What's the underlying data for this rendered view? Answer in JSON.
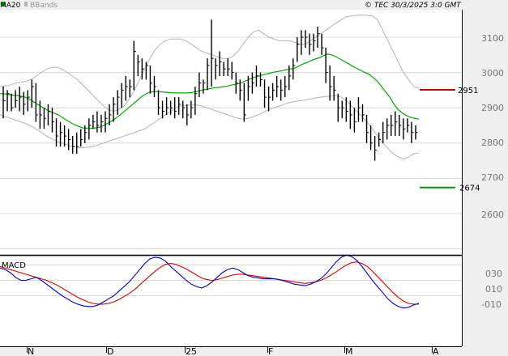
{
  "header": {
    "ma_label": "MA20",
    "bb_label": "BBands",
    "copyright": "© TEC 30/3/2025 3:0 GMT"
  },
  "macd_panel": {
    "label": "MACD",
    "y_ticks": [
      "030",
      "010",
      "-010"
    ]
  },
  "price_axis": {
    "ticks": [
      "3100",
      "3000",
      "2900",
      "2800",
      "2700",
      "2600"
    ]
  },
  "x_axis": {
    "labels": [
      "N",
      "D",
      "25",
      "F",
      "M",
      "A"
    ]
  },
  "levels": {
    "resistance_label": "2951",
    "support_label": "2674"
  },
  "colors": {
    "price_bars": "#000000",
    "ma20": "#00aa00",
    "bbands": "#b4b4b4",
    "resistance": "#cc0000",
    "support": "#009900",
    "macd_line": "#0000cc",
    "signal_line": "#dd0000",
    "grid": "#d8d8d8",
    "panel_background": "#ffffff",
    "page_background": "#efefef"
  },
  "chart_data": {
    "type": "ohlc-bars",
    "title": "",
    "price_ylim": [
      2500,
      3160
    ],
    "resistance": 2951,
    "support": 2674,
    "price_bars": [
      {
        "h": 2960,
        "l": 2870,
        "c": 2920
      },
      {
        "h": 2950,
        "l": 2890,
        "c": 2940
      },
      {
        "h": 2940,
        "l": 2890,
        "c": 2900
      },
      {
        "h": 2950,
        "l": 2900,
        "c": 2920
      },
      {
        "h": 2960,
        "l": 2890,
        "c": 2930
      },
      {
        "h": 2945,
        "l": 2880,
        "c": 2910
      },
      {
        "h": 2950,
        "l": 2890,
        "c": 2930
      },
      {
        "h": 2980,
        "l": 2900,
        "c": 2960
      },
      {
        "h": 2970,
        "l": 2860,
        "c": 2880
      },
      {
        "h": 2920,
        "l": 2840,
        "c": 2880
      },
      {
        "h": 2900,
        "l": 2840,
        "c": 2870
      },
      {
        "h": 2910,
        "l": 2850,
        "c": 2890
      },
      {
        "h": 2900,
        "l": 2830,
        "c": 2860
      },
      {
        "h": 2870,
        "l": 2790,
        "c": 2820
      },
      {
        "h": 2860,
        "l": 2790,
        "c": 2830
      },
      {
        "h": 2850,
        "l": 2790,
        "c": 2820
      },
      {
        "h": 2840,
        "l": 2780,
        "c": 2810
      },
      {
        "h": 2820,
        "l": 2770,
        "c": 2790
      },
      {
        "h": 2830,
        "l": 2770,
        "c": 2790
      },
      {
        "h": 2840,
        "l": 2790,
        "c": 2810
      },
      {
        "h": 2850,
        "l": 2800,
        "c": 2830
      },
      {
        "h": 2870,
        "l": 2810,
        "c": 2850
      },
      {
        "h": 2880,
        "l": 2840,
        "c": 2860
      },
      {
        "h": 2890,
        "l": 2830,
        "c": 2850
      },
      {
        "h": 2880,
        "l": 2830,
        "c": 2860
      },
      {
        "h": 2890,
        "l": 2830,
        "c": 2870
      },
      {
        "h": 2910,
        "l": 2850,
        "c": 2880
      },
      {
        "h": 2930,
        "l": 2860,
        "c": 2910
      },
      {
        "h": 2950,
        "l": 2880,
        "c": 2930
      },
      {
        "h": 2970,
        "l": 2900,
        "c": 2950
      },
      {
        "h": 2990,
        "l": 2920,
        "c": 2960
      },
      {
        "h": 2980,
        "l": 2930,
        "c": 2960
      },
      {
        "h": 3090,
        "l": 2950,
        "c": 3060
      },
      {
        "h": 3050,
        "l": 2990,
        "c": 3030
      },
      {
        "h": 3040,
        "l": 2980,
        "c": 3010
      },
      {
        "h": 3030,
        "l": 2980,
        "c": 3020
      },
      {
        "h": 3020,
        "l": 2940,
        "c": 2970
      },
      {
        "h": 2990,
        "l": 2930,
        "c": 2960
      },
      {
        "h": 2950,
        "l": 2880,
        "c": 2900
      },
      {
        "h": 2920,
        "l": 2870,
        "c": 2890
      },
      {
        "h": 2930,
        "l": 2880,
        "c": 2900
      },
      {
        "h": 2920,
        "l": 2880,
        "c": 2900
      },
      {
        "h": 2930,
        "l": 2870,
        "c": 2890
      },
      {
        "h": 2930,
        "l": 2880,
        "c": 2910
      },
      {
        "h": 2920,
        "l": 2870,
        "c": 2900
      },
      {
        "h": 2910,
        "l": 2850,
        "c": 2880
      },
      {
        "h": 2920,
        "l": 2870,
        "c": 2900
      },
      {
        "h": 2960,
        "l": 2880,
        "c": 2940
      },
      {
        "h": 3000,
        "l": 2930,
        "c": 2970
      },
      {
        "h": 2980,
        "l": 2940,
        "c": 2970
      },
      {
        "h": 3040,
        "l": 2950,
        "c": 3020
      },
      {
        "h": 3150,
        "l": 2960,
        "c": 3040
      },
      {
        "h": 3040,
        "l": 2980,
        "c": 3020
      },
      {
        "h": 3060,
        "l": 2990,
        "c": 3030
      },
      {
        "h": 3030,
        "l": 2990,
        "c": 3010
      },
      {
        "h": 3040,
        "l": 2990,
        "c": 3010
      },
      {
        "h": 3030,
        "l": 2980,
        "c": 3000
      },
      {
        "h": 3000,
        "l": 2940,
        "c": 2970
      },
      {
        "h": 2980,
        "l": 2920,
        "c": 2950
      },
      {
        "h": 2970,
        "l": 2860,
        "c": 2880
      },
      {
        "h": 2990,
        "l": 2920,
        "c": 2960
      },
      {
        "h": 3000,
        "l": 2940,
        "c": 2970
      },
      {
        "h": 3020,
        "l": 2960,
        "c": 2990
      },
      {
        "h": 3000,
        "l": 2960,
        "c": 2980
      },
      {
        "h": 2980,
        "l": 2900,
        "c": 2930
      },
      {
        "h": 2960,
        "l": 2890,
        "c": 2930
      },
      {
        "h": 2970,
        "l": 2920,
        "c": 2950
      },
      {
        "h": 2990,
        "l": 2930,
        "c": 2960
      },
      {
        "h": 2980,
        "l": 2920,
        "c": 2950
      },
      {
        "h": 2990,
        "l": 2930,
        "c": 2960
      },
      {
        "h": 3020,
        "l": 2950,
        "c": 2990
      },
      {
        "h": 3040,
        "l": 2980,
        "c": 3020
      },
      {
        "h": 3100,
        "l": 3030,
        "c": 3080
      },
      {
        "h": 3120,
        "l": 3050,
        "c": 3100
      },
      {
        "h": 3120,
        "l": 3070,
        "c": 3100
      },
      {
        "h": 3110,
        "l": 3050,
        "c": 3080
      },
      {
        "h": 3110,
        "l": 3060,
        "c": 3090
      },
      {
        "h": 3130,
        "l": 3070,
        "c": 3110
      },
      {
        "h": 3110,
        "l": 3050,
        "c": 3070
      },
      {
        "h": 3070,
        "l": 2970,
        "c": 3000
      },
      {
        "h": 3020,
        "l": 2920,
        "c": 2960
      },
      {
        "h": 2990,
        "l": 2920,
        "c": 2950
      },
      {
        "h": 2940,
        "l": 2860,
        "c": 2900
      },
      {
        "h": 2920,
        "l": 2870,
        "c": 2900
      },
      {
        "h": 2930,
        "l": 2860,
        "c": 2890
      },
      {
        "h": 2920,
        "l": 2840,
        "c": 2880
      },
      {
        "h": 2900,
        "l": 2830,
        "c": 2860
      },
      {
        "h": 2930,
        "l": 2860,
        "c": 2900
      },
      {
        "h": 2910,
        "l": 2860,
        "c": 2880
      },
      {
        "h": 2880,
        "l": 2800,
        "c": 2830
      },
      {
        "h": 2850,
        "l": 2780,
        "c": 2800
      },
      {
        "h": 2820,
        "l": 2750,
        "c": 2780
      },
      {
        "h": 2830,
        "l": 2790,
        "c": 2810
      },
      {
        "h": 2860,
        "l": 2800,
        "c": 2830
      },
      {
        "h": 2870,
        "l": 2810,
        "c": 2850
      },
      {
        "h": 2880,
        "l": 2820,
        "c": 2850
      },
      {
        "h": 2890,
        "l": 2820,
        "c": 2860
      },
      {
        "h": 2880,
        "l": 2820,
        "c": 2850
      },
      {
        "h": 2870,
        "l": 2810,
        "c": 2840
      },
      {
        "h": 2870,
        "l": 2830,
        "c": 2850
      },
      {
        "h": 2860,
        "l": 2800,
        "c": 2830
      },
      {
        "h": 2850,
        "l": 2810,
        "c": 2830
      }
    ],
    "ma20": [
      2940,
      2940,
      2938,
      2936,
      2935,
      2933,
      2930,
      2925,
      2918,
      2910,
      2903,
      2896,
      2890,
      2885,
      2880,
      2873,
      2865,
      2858,
      2852,
      2847,
      2843,
      2842,
      2842,
      2843,
      2845,
      2850,
      2856,
      2863,
      2871,
      2880,
      2890,
      2900,
      2910,
      2920,
      2930,
      2938,
      2944,
      2946,
      2946,
      2945,
      2944,
      2943,
      2942,
      2942,
      2942,
      2942,
      2943,
      2945,
      2948,
      2951,
      2953,
      2955,
      2957,
      2958,
      2960,
      2962,
      2965,
      2967,
      2970,
      2975,
      2980,
      2985,
      2989,
      2992,
      2995,
      2998,
      3001,
      3003,
      3005,
      3008,
      3010,
      3012,
      3018,
      3024,
      3028,
      3034,
      3038,
      3042,
      3048,
      3052,
      3050,
      3045,
      3038,
      3032,
      3025,
      3018,
      3012,
      3006,
      3000,
      2995,
      2985,
      2975,
      2960,
      2945,
      2930,
      2910,
      2895,
      2885,
      2878,
      2873,
      2870,
      2868
    ],
    "bb_upper": [
      2960,
      2962,
      2965,
      2970,
      2972,
      2975,
      2980,
      2990,
      3000,
      3010,
      3015,
      3015,
      3010,
      3000,
      2990,
      2980,
      2965,
      2950,
      2935,
      2920,
      2905,
      2895,
      2890,
      2895,
      2905,
      2925,
      2950,
      2980,
      3010,
      3040,
      3065,
      3080,
      3090,
      3095,
      3095,
      3095,
      3090,
      3080,
      3070,
      3060,
      3055,
      3050,
      3045,
      3040,
      3040,
      3045,
      3060,
      3080,
      3100,
      3115,
      3120,
      3110,
      3100,
      3095,
      3090,
      3090,
      3090,
      3085,
      3080,
      3080,
      3090,
      3100,
      3110,
      3120,
      3130,
      3140,
      3150,
      3158,
      3160,
      3162,
      3163,
      3162,
      3160,
      3150,
      3120,
      3090,
      3060,
      3030,
      3000,
      2980,
      2960,
      2955
    ],
    "bb_lower": [
      2880,
      2875,
      2870,
      2865,
      2860,
      2855,
      2848,
      2840,
      2830,
      2820,
      2812,
      2805,
      2800,
      2795,
      2790,
      2788,
      2787,
      2788,
      2790,
      2795,
      2800,
      2805,
      2810,
      2815,
      2820,
      2825,
      2830,
      2835,
      2840,
      2850,
      2860,
      2870,
      2880,
      2890,
      2900,
      2905,
      2907,
      2908,
      2908,
      2905,
      2900,
      2895,
      2890,
      2885,
      2880,
      2875,
      2870,
      2868,
      2870,
      2875,
      2880,
      2888,
      2895,
      2900,
      2905,
      2910,
      2915,
      2918,
      2920,
      2922,
      2925,
      2928,
      2930,
      2932,
      2933,
      2934,
      2930,
      2920,
      2905,
      2890,
      2875,
      2860,
      2840,
      2820,
      2800,
      2785,
      2770,
      2760,
      2755,
      2760,
      2770,
      2772
    ],
    "macd": [
      26,
      24,
      20,
      14,
      10,
      10,
      12,
      14,
      10,
      5,
      0,
      -5,
      -10,
      -14,
      -18,
      -21,
      -23,
      -24,
      -24,
      -22,
      -18,
      -14,
      -10,
      -4,
      2,
      8,
      16,
      24,
      32,
      38,
      40,
      39,
      35,
      28,
      22,
      16,
      10,
      5,
      2,
      0,
      3,
      8,
      14,
      20,
      24,
      26,
      24,
      20,
      16,
      14,
      13,
      12,
      12,
      12,
      11,
      9,
      7,
      5,
      4,
      3,
      5,
      8,
      12,
      18,
      26,
      34,
      40,
      43,
      41,
      36,
      28,
      19,
      10,
      2,
      -6,
      -14,
      -20,
      -24,
      -26,
      -25,
      -22,
      -20
    ],
    "signal": [
      28,
      26,
      24,
      22,
      20,
      18,
      16,
      14,
      12,
      10,
      7,
      4,
      0,
      -4,
      -8,
      -12,
      -15,
      -18,
      -20,
      -21,
      -21,
      -20,
      -18,
      -15,
      -11,
      -7,
      -2,
      4,
      10,
      16,
      22,
      27,
      31,
      32,
      31,
      28,
      25,
      21,
      17,
      13,
      11,
      10,
      11,
      13,
      15,
      17,
      18,
      18,
      17,
      16,
      15,
      14,
      13,
      12,
      11,
      10,
      9,
      8,
      7,
      6,
      7,
      8,
      10,
      13,
      17,
      21,
      26,
      30,
      33,
      34,
      32,
      28,
      22,
      15,
      8,
      1,
      -6,
      -12,
      -17,
      -20,
      -21,
      -21
    ],
    "macd_ylim": [
      -36,
      46
    ]
  }
}
